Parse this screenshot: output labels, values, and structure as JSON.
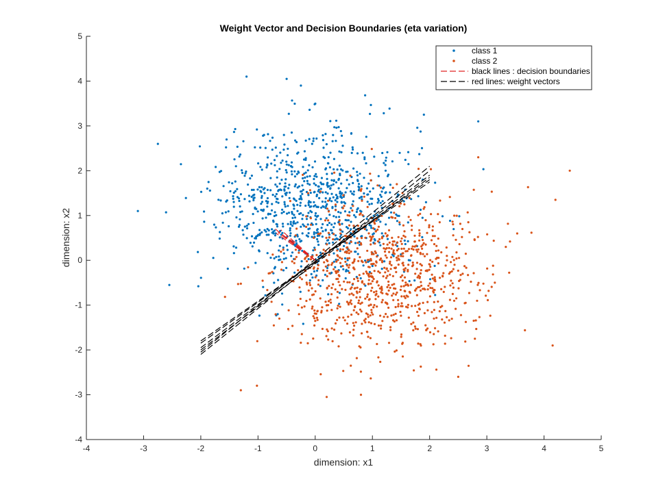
{
  "chart_data": {
    "type": "scatter",
    "title": "Weight Vector and Decision Boundaries (eta variation)",
    "xlabel": "dimension: x1",
    "ylabel": "dimension: x2",
    "xlim": [
      -4,
      5
    ],
    "ylim": [
      -4,
      5
    ],
    "xticks": [
      "-4",
      "-3",
      "-2",
      "-1",
      "0",
      "1",
      "2",
      "3",
      "4",
      "5"
    ],
    "yticks": [
      "-4",
      "-3",
      "-2",
      "-1",
      "0",
      "1",
      "2",
      "3",
      "4",
      "5"
    ],
    "grid": false,
    "legend_position": "top-right",
    "colors": {
      "class1": "#0072BD",
      "class2": "#D95319",
      "boundary": "#000000",
      "weight": "#E02020"
    },
    "series": [
      {
        "name": "class 1",
        "kind": "points",
        "mean": [
          0,
          1.2
        ],
        "std": [
          0.85,
          0.85
        ],
        "count": 900,
        "extreme_points": [
          [
            -1.2,
            4.1
          ],
          [
            -0.5,
            4.05
          ],
          [
            -3.1,
            1.1
          ],
          [
            -2.75,
            2.6
          ],
          [
            2.85,
            3.1
          ],
          [
            1.9,
            3.25
          ],
          [
            -2.55,
            -0.55
          ],
          [
            -0.25,
            3.9
          ]
        ]
      },
      {
        "name": "class 2",
        "kind": "points",
        "mean": [
          1.2,
          -0.3
        ],
        "std": [
          0.85,
          0.85
        ],
        "count": 900,
        "extreme_points": [
          [
            4.45,
            2.0
          ],
          [
            4.2,
            1.35
          ],
          [
            4.15,
            -1.9
          ],
          [
            -1.3,
            -2.9
          ],
          [
            0.2,
            -3.05
          ],
          [
            0.8,
            -3.0
          ],
          [
            2.5,
            -2.6
          ],
          [
            2.85,
            2.3
          ]
        ]
      },
      {
        "name": "black lines : decision boundaries",
        "kind": "lines",
        "lines": [
          [
            [
              -2,
              -2.1
            ],
            [
              2,
              2.0
            ]
          ],
          [
            [
              -2,
              -2.0
            ],
            [
              2,
              1.85
            ]
          ],
          [
            [
              -2,
              -1.95
            ],
            [
              2,
              1.9
            ]
          ],
          [
            [
              -2,
              -1.85
            ],
            [
              2,
              1.8
            ]
          ],
          [
            [
              -2,
              -1.8
            ],
            [
              2,
              1.75
            ]
          ],
          [
            [
              -2,
              -2.05
            ],
            [
              2,
              2.1
            ]
          ]
        ]
      },
      {
        "name": "red lines: weight vectors",
        "kind": "lines",
        "lines": [
          [
            [
              0,
              0
            ],
            [
              -0.7,
              0.7
            ]
          ],
          [
            [
              0,
              0
            ],
            [
              -0.65,
              0.62
            ]
          ],
          [
            [
              0,
              0
            ],
            [
              -0.6,
              0.68
            ]
          ],
          [
            [
              0,
              0
            ],
            [
              -0.55,
              0.55
            ]
          ],
          [
            [
              0,
              0
            ],
            [
              -0.68,
              0.6
            ]
          ],
          [
            [
              0,
              0
            ],
            [
              -0.5,
              0.52
            ]
          ]
        ]
      }
    ],
    "legend": [
      {
        "label": "class 1",
        "marker": "dot",
        "color": "#0072BD"
      },
      {
        "label": "class 2",
        "marker": "dot",
        "color": "#D95319"
      },
      {
        "label": "black lines : decision boundaries",
        "marker": "dash",
        "color": "#E02020"
      },
      {
        "label": "red lines: weight vectors",
        "marker": "dash",
        "color": "#000000"
      }
    ]
  }
}
